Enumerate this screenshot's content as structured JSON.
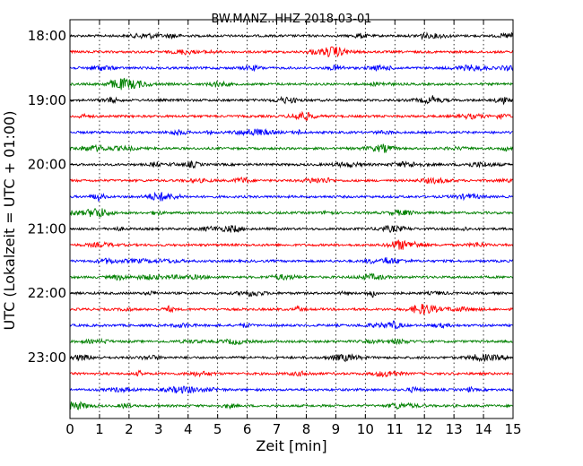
{
  "chart_data": {
    "type": "line",
    "title": "BW.MANZ..HHZ 2018-03-01",
    "xlabel": "Zeit  [min]",
    "ylabel": "UTC (Lokalzeit = UTC + 01:00)",
    "xlim": [
      0,
      15
    ],
    "xticks": [
      "0",
      "1",
      "2",
      "3",
      "4",
      "5",
      "6",
      "7",
      "8",
      "9",
      "10",
      "11",
      "12",
      "13",
      "14",
      "15"
    ],
    "yticks": [
      "18:00",
      "19:00",
      "20:00",
      "21:00",
      "22:00",
      "23:00"
    ],
    "grid": "vertical dotted at each minute",
    "trace_start": "18:00",
    "trace_interval_min": 15,
    "series_colors": [
      "#000000",
      "#ff0000",
      "#0000ff",
      "#008000"
    ],
    "series": [
      {
        "start": "18:00",
        "color": "#000000"
      },
      {
        "start": "18:15",
        "color": "#ff0000"
      },
      {
        "start": "18:30",
        "color": "#0000ff"
      },
      {
        "start": "18:45",
        "color": "#008000"
      },
      {
        "start": "19:00",
        "color": "#000000"
      },
      {
        "start": "19:15",
        "color": "#ff0000"
      },
      {
        "start": "19:30",
        "color": "#0000ff"
      },
      {
        "start": "19:45",
        "color": "#008000"
      },
      {
        "start": "20:00",
        "color": "#000000"
      },
      {
        "start": "20:15",
        "color": "#ff0000"
      },
      {
        "start": "20:30",
        "color": "#0000ff"
      },
      {
        "start": "20:45",
        "color": "#008000"
      },
      {
        "start": "21:00",
        "color": "#000000"
      },
      {
        "start": "21:15",
        "color": "#ff0000"
      },
      {
        "start": "21:30",
        "color": "#0000ff"
      },
      {
        "start": "21:45",
        "color": "#008000"
      },
      {
        "start": "22:00",
        "color": "#000000"
      },
      {
        "start": "22:15",
        "color": "#ff0000"
      },
      {
        "start": "22:30",
        "color": "#0000ff"
      },
      {
        "start": "22:45",
        "color": "#008000"
      },
      {
        "start": "23:00",
        "color": "#000000"
      },
      {
        "start": "23:15",
        "color": "#ff0000"
      },
      {
        "start": "23:30",
        "color": "#0000ff"
      },
      {
        "start": "23:45",
        "color": "#008000"
      }
    ]
  }
}
